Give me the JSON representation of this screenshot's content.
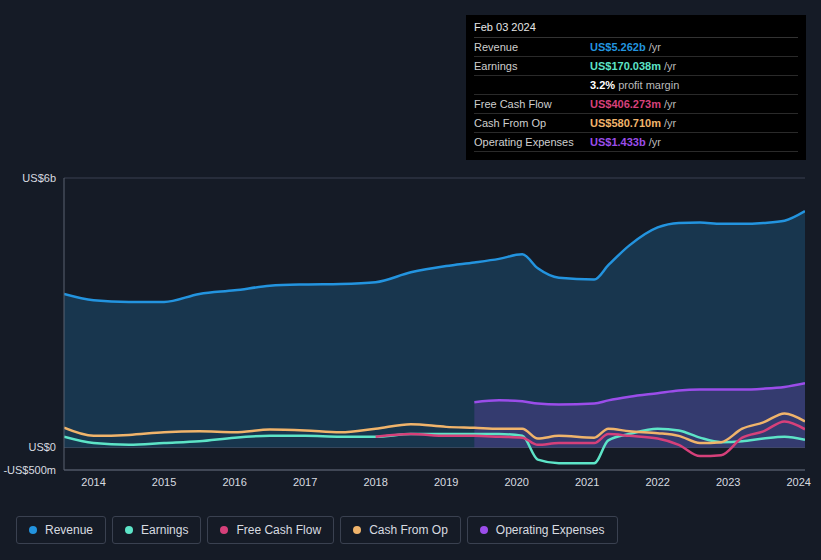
{
  "chart_data": {
    "type": "line",
    "x": [
      2013.58,
      2014,
      2014.5,
      2015,
      2015.5,
      2016,
      2016.5,
      2017,
      2017.5,
      2018,
      2018.5,
      2019,
      2019.4,
      2019.75,
      2020.08,
      2020.3,
      2020.6,
      2021.1,
      2021.3,
      2021.6,
      2022,
      2022.3,
      2022.6,
      2022.9,
      2023.2,
      2023.5,
      2023.8,
      2024.09
    ],
    "series": [
      {
        "name": "Revenue",
        "type": "area",
        "color": "#2394df",
        "values": [
          3420,
          3280,
          3240,
          3240,
          3420,
          3500,
          3600,
          3630,
          3640,
          3680,
          3900,
          4040,
          4120,
          4200,
          4300,
          3990,
          3780,
          3740,
          4060,
          4500,
          4900,
          5000,
          5010,
          4980,
          4980,
          5000,
          5050,
          5262
        ]
      },
      {
        "name": "Earnings",
        "type": "line",
        "color": "#5de4c7",
        "values": [
          240,
          100,
          60,
          100,
          140,
          220,
          260,
          260,
          240,
          240,
          300,
          300,
          300,
          300,
          260,
          -270,
          -350,
          -350,
          160,
          300,
          420,
          380,
          220,
          120,
          140,
          200,
          240,
          170
        ]
      },
      {
        "name": "Free Cash Flow",
        "type": "line",
        "color": "#d6407a",
        "values": [
          null,
          null,
          null,
          null,
          null,
          null,
          null,
          null,
          null,
          240,
          300,
          260,
          260,
          240,
          220,
          60,
          100,
          100,
          300,
          260,
          200,
          60,
          -190,
          -170,
          220,
          360,
          580,
          406
        ]
      },
      {
        "name": "Cash From Op",
        "type": "line",
        "color": "#f0b46b",
        "values": [
          440,
          260,
          280,
          340,
          360,
          340,
          400,
          380,
          340,
          420,
          520,
          460,
          440,
          420,
          420,
          200,
          260,
          220,
          420,
          360,
          320,
          260,
          100,
          120,
          420,
          560,
          760,
          581
        ]
      },
      {
        "name": "Operating Expenses",
        "type": "area",
        "color": "#9b4dea",
        "values": [
          null,
          null,
          null,
          null,
          null,
          null,
          null,
          null,
          null,
          null,
          null,
          null,
          1010,
          1050,
          1030,
          980,
          960,
          980,
          1050,
          1130,
          1210,
          1270,
          1290,
          1290,
          1290,
          1310,
          1350,
          1433
        ]
      }
    ],
    "xlim": [
      2013.58,
      2024.09
    ],
    "xticks": [
      2014,
      2015,
      2016,
      2017,
      2018,
      2019,
      2020,
      2021,
      2022,
      2023,
      2024
    ],
    "ylim": [
      -500,
      6000
    ],
    "yticks": [
      {
        "value": -500,
        "label": "-US$500m"
      },
      {
        "value": 0,
        "label": "US$0"
      },
      {
        "value": 6000,
        "label": "US$6b"
      }
    ],
    "grid": true,
    "legend": "bottom",
    "tooltip": {
      "date": "Feb 03 2024",
      "rows": [
        {
          "label": "Revenue",
          "value": "US$5.262b",
          "unit": "/yr"
        },
        {
          "label": "Earnings",
          "value": "US$170.038m",
          "unit": "/yr"
        },
        {
          "label": "",
          "value": "3.2%",
          "unit": "profit margin"
        },
        {
          "label": "Free Cash Flow",
          "value": "US$406.273m",
          "unit": "/yr"
        },
        {
          "label": "Cash From Op",
          "value": "US$580.710m",
          "unit": "/yr"
        },
        {
          "label": "Operating Expenses",
          "value": "US$1.433b",
          "unit": "/yr"
        }
      ]
    }
  }
}
